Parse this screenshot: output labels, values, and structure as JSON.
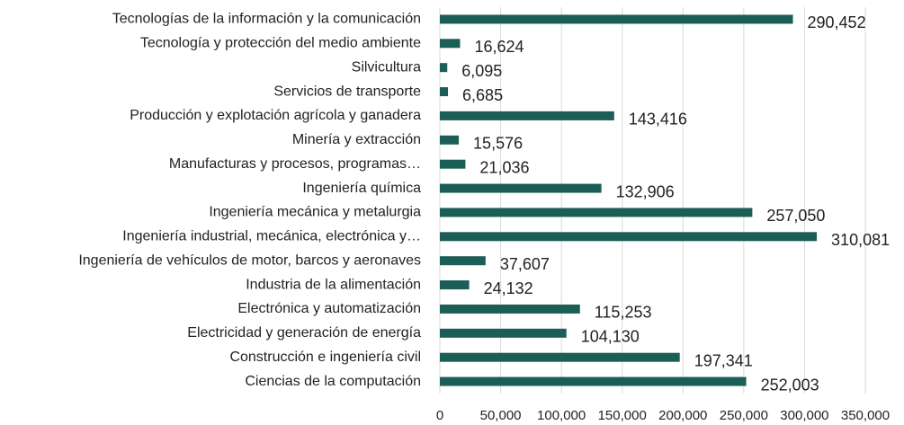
{
  "chart_data": {
    "type": "bar",
    "orientation": "horizontal",
    "categories": [
      "Tecnologías de la información y la comunicación",
      "Tecnología y protección del medio ambiente",
      "Silvicultura",
      "Servicios de transporte",
      "Producción y explotación agrícola y ganadera",
      "Minería y extracción",
      "Manufacturas y procesos, programas…",
      "Ingeniería química",
      "Ingeniería mecánica y metalurgia",
      "Ingeniería industrial, mecánica, electrónica y…",
      "Ingeniería de vehículos de motor, barcos y aeronaves",
      "Industria de la alimentación",
      "Electrónica y automatización",
      "Electricidad y generación de energía",
      "Construcción e ingeniería civil",
      "Ciencias de la computación"
    ],
    "values": [
      290452,
      16624,
      6095,
      6685,
      143416,
      15576,
      21036,
      132906,
      257050,
      310081,
      37607,
      24132,
      115253,
      104130,
      197341,
      252003
    ],
    "value_labels": [
      "290,452",
      "16,624",
      "6,095",
      "6,685",
      "143,416",
      "15,576",
      "21,036",
      "132,906",
      "257,050",
      "310,081",
      "37,607",
      "24,132",
      "115,253",
      "104,130",
      "197,341",
      "252,003"
    ],
    "color": "#1b5e56",
    "xlim": [
      0,
      350000
    ],
    "xticks": [
      0,
      {
        "value": 50000,
        "label": "50,000"
      },
      {
        "value": 100000,
        "label": "100,000"
      },
      {
        "value": 150000,
        "label": "150,000"
      },
      {
        "value": 200000,
        "label": "200,000"
      },
      {
        "value": 250000,
        "label": "250,000"
      },
      {
        "value": 300000,
        "label": "300,000"
      },
      {
        "value": 350000,
        "label": "350,000"
      }
    ],
    "grid": true
  }
}
